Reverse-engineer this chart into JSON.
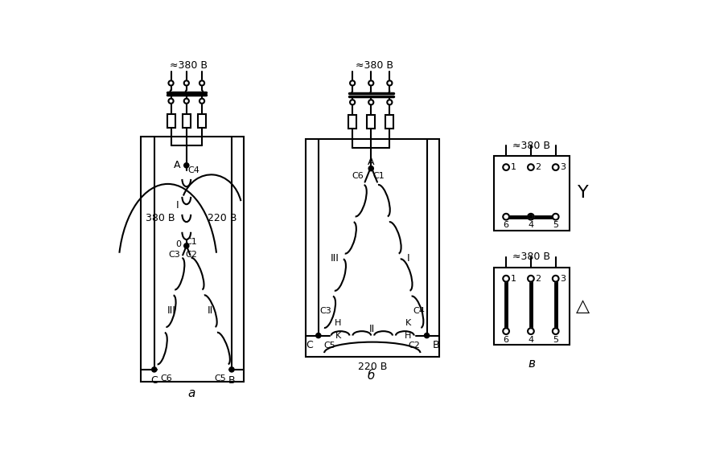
{
  "bg_color": "#ffffff",
  "line_color": "#000000",
  "title_a": "а",
  "title_b": "б",
  "title_v": "в",
  "voltage_380": "≈380 В",
  "voltage_220": "220 В",
  "voltage_380b": "380 В",
  "label_A": "A",
  "label_B": "B",
  "label_C": "C",
  "label_0": "0",
  "label_I": "I",
  "label_II": "II",
  "label_III": "III",
  "label_C1": "C1",
  "label_C2": "C2",
  "label_C3": "C3",
  "label_C4": "C4",
  "label_C5": "C5",
  "label_C6": "C6",
  "label_H": "H",
  "label_K": "K",
  "star_symbol": "Y",
  "delta_symbol": "△"
}
